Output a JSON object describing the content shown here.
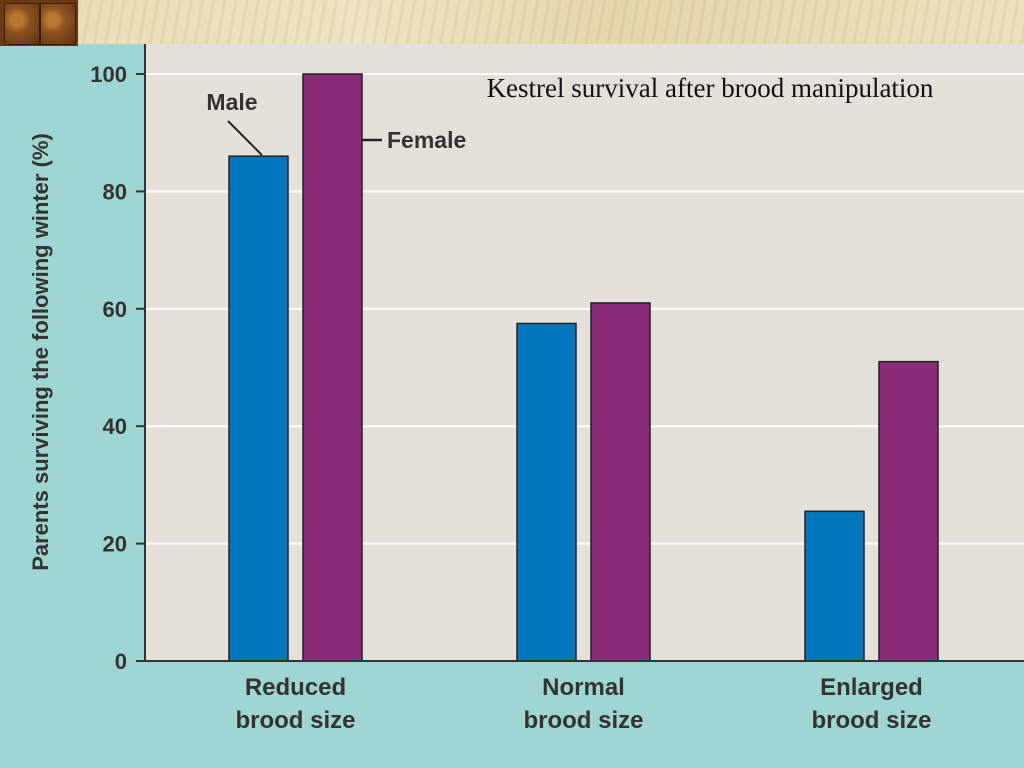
{
  "chart_data": {
    "type": "bar",
    "title": "Kestrel survival after brood manipulation",
    "ylabel": "Parents surviving the following winter (%)",
    "xlabel": "",
    "ylim": [
      0,
      100
    ],
    "yticks": [
      0,
      20,
      40,
      60,
      80,
      100
    ],
    "grid": true,
    "categories": [
      [
        "Reduced",
        "brood size"
      ],
      [
        "Normal",
        "brood size"
      ],
      [
        "Enlarged",
        "brood size"
      ]
    ],
    "series": [
      {
        "name": "Male",
        "color": "#0077bd",
        "values": [
          86,
          57.5,
          25.5
        ]
      },
      {
        "name": "Female",
        "color": "#8a2c78",
        "values": [
          100,
          61,
          51
        ]
      }
    ]
  },
  "colors": {
    "plot_background": "#e6e0db",
    "page_background": "#9fd6d3",
    "gridline": "#ffffff",
    "axis": "#333333"
  }
}
